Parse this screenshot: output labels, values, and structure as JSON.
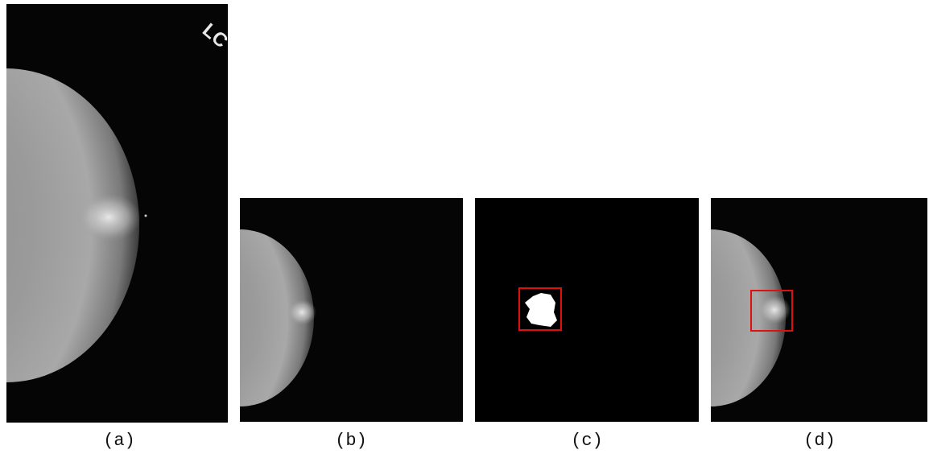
{
  "panels": [
    {
      "label": "(a)",
      "marker": "LC"
    },
    {
      "label": "(b)"
    },
    {
      "label": "(c)"
    },
    {
      "label": "(d)"
    }
  ]
}
